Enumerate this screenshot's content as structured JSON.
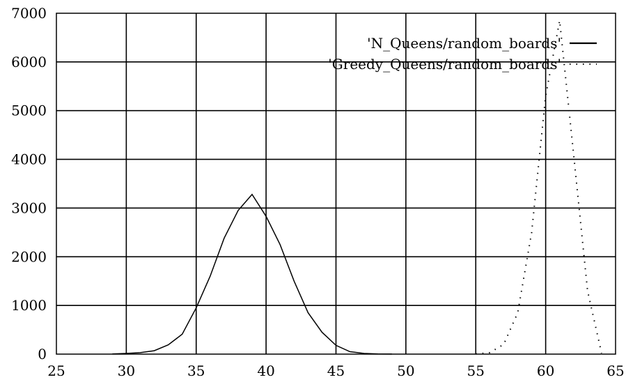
{
  "chart_data": {
    "type": "line",
    "title": "",
    "xlabel": "",
    "ylabel": "",
    "xlim": [
      25,
      65
    ],
    "ylim": [
      0,
      7000
    ],
    "xticks": [
      25,
      30,
      35,
      40,
      45,
      50,
      55,
      60,
      65
    ],
    "yticks": [
      0,
      1000,
      2000,
      3000,
      4000,
      5000,
      6000,
      7000
    ],
    "grid": true,
    "legend_position": "top-right",
    "series": [
      {
        "name": "'N_Queens/random_boards'",
        "style": "solid",
        "color": "#000000",
        "x": [
          29,
          30,
          31,
          32,
          33,
          34,
          35,
          36,
          37,
          38,
          39,
          40,
          41,
          42,
          43,
          44,
          45,
          46,
          47,
          48,
          49
        ],
        "y": [
          5,
          15,
          30,
          70,
          190,
          410,
          950,
          1600,
          2380,
          2950,
          3280,
          2830,
          2250,
          1500,
          850,
          450,
          180,
          50,
          15,
          5,
          2
        ]
      },
      {
        "name": "'Greedy_Queens/random_boards'",
        "style": "dotted",
        "color": "#000000",
        "x": [
          55,
          56,
          57,
          58,
          59,
          60,
          61,
          62,
          63,
          64
        ],
        "y": [
          5,
          30,
          200,
          850,
          2500,
          5300,
          6850,
          4100,
          1300,
          20
        ]
      }
    ]
  }
}
